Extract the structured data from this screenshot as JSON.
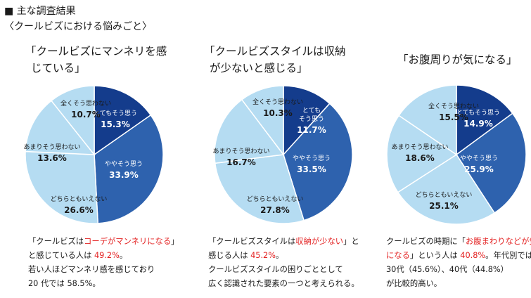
{
  "header": {
    "title": "■ 主な調査結果",
    "subtitle": "〈クールビズにおける悩みごと〉"
  },
  "colors": {
    "dark": "#143c8c",
    "mid": "#2e62ae",
    "light": "#b5dcf2",
    "highlight": "#e32020"
  },
  "chart_data": [
    {
      "type": "pie",
      "title_lines": [
        "「クールビズにマンネリを感",
        "じている」"
      ],
      "slices": [
        {
          "label": "とてもそう思う",
          "value": 15.3,
          "display": "15.3%",
          "shade": "dark"
        },
        {
          "label": "ややそう思う",
          "value": 33.9,
          "display": "33.9%",
          "shade": "mid"
        },
        {
          "label": "どちらともいえない",
          "value": 26.6,
          "display": "26.6%",
          "shade": "light"
        },
        {
          "label": "あまりそう思わない",
          "value": 13.6,
          "display": "13.6%",
          "shade": "light"
        },
        {
          "label": "全くそう思わない",
          "value": 10.7,
          "display": "10.7%",
          "shade": "light"
        }
      ],
      "notes": [
        [
          {
            "t": "「クールビズは"
          },
          {
            "t": "コーデがマンネリになる",
            "hl": true
          },
          {
            "t": "」"
          }
        ],
        [
          {
            "t": "と感じている人は "
          },
          {
            "t": "49.2%",
            "hl": true
          },
          {
            "t": "。"
          }
        ],
        [
          {
            "t": "若い人ほどマンネリ感を感じており"
          }
        ],
        [
          {
            "t": "20 代では 58.5%。"
          }
        ]
      ]
    },
    {
      "type": "pie",
      "title_lines": [
        "「クールビズスタイルは収納",
        "が少ないと感じる」"
      ],
      "slices": [
        {
          "label": "とても\nそう思う",
          "value": 11.7,
          "display": "11.7%",
          "shade": "dark"
        },
        {
          "label": "ややそう思う",
          "value": 33.5,
          "display": "33.5%",
          "shade": "mid"
        },
        {
          "label": "どちらともいえない",
          "value": 27.8,
          "display": "27.8%",
          "shade": "light"
        },
        {
          "label": "あまりそう思わない",
          "value": 16.7,
          "display": "16.7%",
          "shade": "light"
        },
        {
          "label": "全くそう思わない",
          "value": 10.3,
          "display": "10.3%",
          "shade": "light"
        }
      ],
      "notes": [
        [
          {
            "t": "「クールビズスタイルは"
          },
          {
            "t": "収納が少ない",
            "hl": true
          },
          {
            "t": "」と"
          }
        ],
        [
          {
            "t": "感じる人は "
          },
          {
            "t": "45.2%",
            "hl": true
          },
          {
            "t": "。"
          }
        ],
        [
          {
            "t": "クールビズスタイルの困りごととして"
          }
        ],
        [
          {
            "t": "広く認識された要素の一つと考えられる。"
          }
        ]
      ]
    },
    {
      "type": "pie",
      "title_lines": [
        "「お腹周りが気になる」"
      ],
      "slices": [
        {
          "label": "とてもそう思う",
          "value": 14.9,
          "display": "14.9%",
          "shade": "dark"
        },
        {
          "label": "ややそう思う",
          "value": 25.9,
          "display": "25.9%",
          "shade": "mid"
        },
        {
          "label": "どちらともいえない",
          "value": 25.1,
          "display": "25.1%",
          "shade": "light"
        },
        {
          "label": "あまりそう思わない",
          "value": 18.6,
          "display": "18.6%",
          "shade": "light"
        },
        {
          "label": "全くそう思わない",
          "value": 15.5,
          "display": "15.5%",
          "shade": "light"
        }
      ],
      "notes": [
        [
          {
            "t": "クールビズの時期に「"
          },
          {
            "t": "お腹まわりなどが気",
            "hl": true
          }
        ],
        [
          {
            "t": "になる",
            "hl": true
          },
          {
            "t": "」という人は "
          },
          {
            "t": "40.8%",
            "hl": true
          },
          {
            "t": "。年代別では"
          }
        ],
        [
          {
            "t": "30代（45.6%）、40代（44.8%）"
          }
        ],
        [
          {
            "t": "が比較的高い。"
          }
        ]
      ]
    }
  ]
}
